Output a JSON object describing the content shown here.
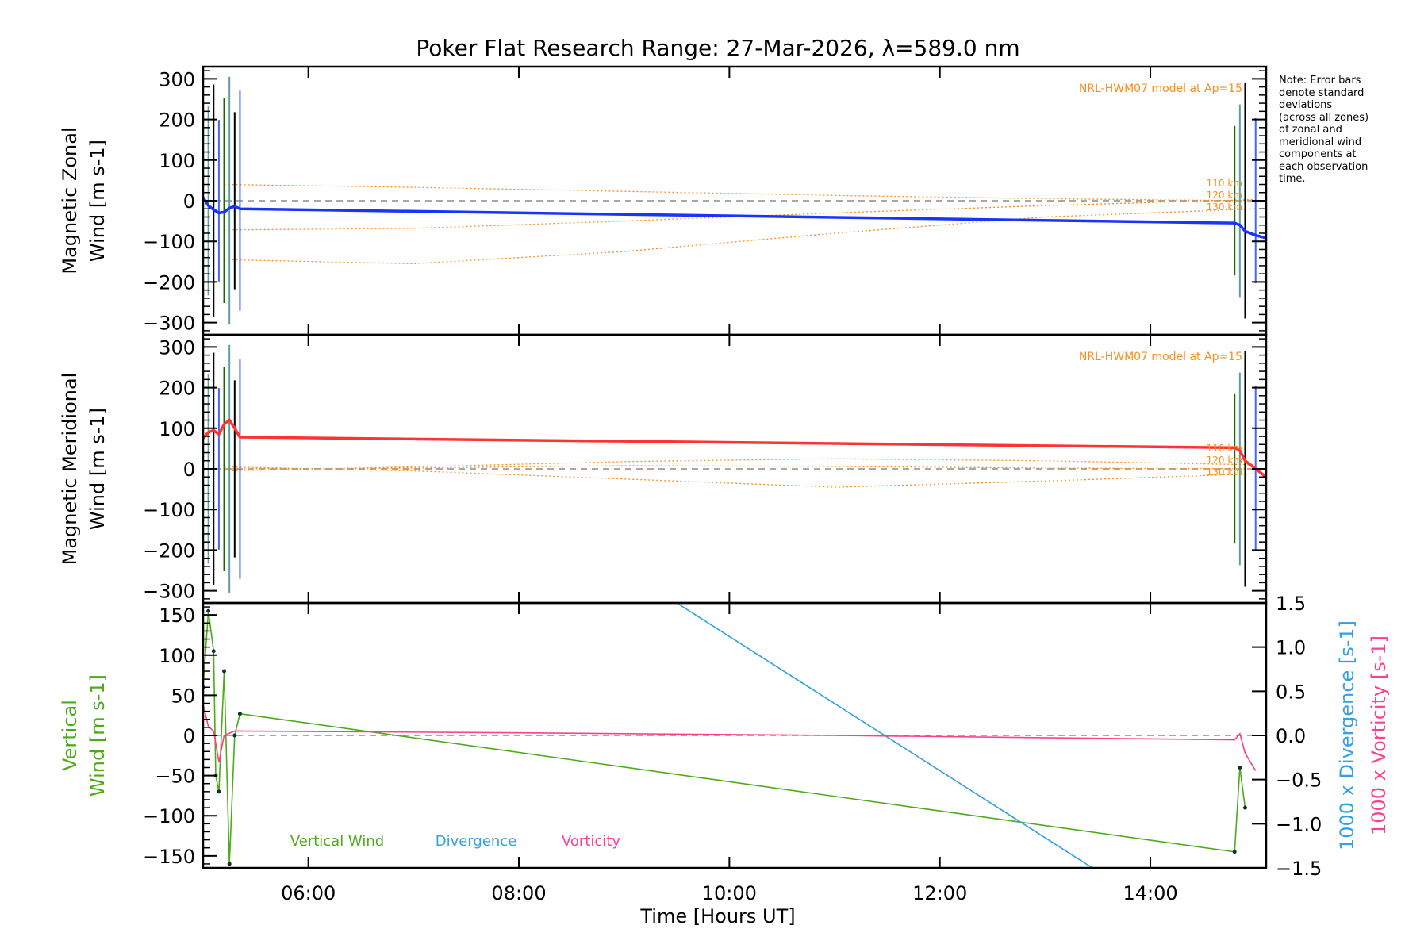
{
  "chart_data": {
    "type": "line",
    "title": "Poker Flat Research Range: 27-Mar-2026, λ=589.0 nm",
    "xlabel": "Time [Hours UT]",
    "xlim": [
      5.0,
      15.1
    ],
    "xticks": [
      6,
      8,
      10,
      12,
      14
    ],
    "xtick_labels": [
      "06:00",
      "08:00",
      "10:00",
      "12:00",
      "14:00"
    ],
    "note": [
      "Note: Error bars",
      "denote standard",
      "deviations",
      "(across all zones)",
      "of zonal and",
      "meridional wind",
      "components at",
      "each observation",
      "time."
    ],
    "panels": [
      {
        "id": "zonal",
        "ylabel_lines": [
          "Magnetic Zonal",
          "Wind [m s-1]"
        ],
        "ylim": [
          -330,
          330
        ],
        "yticks": [
          -300,
          -200,
          -100,
          0,
          100,
          200,
          300
        ],
        "model_label": "NRL-HWM07 model at Ap=15",
        "model_altitudes": [
          "110 km",
          "120 km",
          "130 km"
        ],
        "model_color": "#ff8c1a",
        "series": [
          {
            "name": "Magnetic Zonal Wind",
            "color": "#1a33ff",
            "x": [
              5.0,
              5.05,
              5.1,
              5.15,
              5.2,
              5.25,
              5.3,
              5.35,
              14.8,
              14.85,
              14.9,
              15.0,
              15.1
            ],
            "y": [
              8,
              -12,
              -22,
              -30,
              -28,
              -18,
              -14,
              -20,
              -55,
              -60,
              -75,
              -85,
              -92
            ]
          }
        ],
        "model_series": [
          {
            "x": [
              5.2,
              7.0,
              9.0,
              11.0,
              13.0,
              15.0
            ],
            "y": [
              40,
              33,
              23,
              13,
              5,
              0
            ]
          },
          {
            "x": [
              5.2,
              7.0,
              9.0,
              11.0,
              13.0,
              15.0
            ],
            "y": [
              -72,
              -68,
              -50,
              -30,
              -12,
              3
            ]
          },
          {
            "x": [
              5.2,
              7.0,
              9.0,
              11.0,
              13.0,
              15.0
            ],
            "y": [
              -145,
              -155,
              -125,
              -80,
              -40,
              -20
            ]
          }
        ]
      },
      {
        "id": "meridional",
        "ylabel_lines": [
          "Magnetic Meridional",
          "Wind [m s-1]"
        ],
        "ylim": [
          -330,
          330
        ],
        "yticks": [
          -300,
          -200,
          -100,
          0,
          100,
          200,
          300
        ],
        "model_label": "NRL-HWM07 model at Ap=15",
        "model_altitudes": [
          "110 km",
          "120 km",
          "130 km"
        ],
        "model_color": "#ff8c1a",
        "series": [
          {
            "name": "Magnetic Meridional Wind",
            "color": "#ff3333",
            "x": [
              5.0,
              5.05,
              5.1,
              5.15,
              5.2,
              5.25,
              5.3,
              5.35,
              14.8,
              14.85,
              14.9,
              15.0,
              15.1
            ],
            "y": [
              75,
              90,
              95,
              85,
              110,
              120,
              100,
              78,
              52,
              45,
              20,
              0,
              -20
            ]
          }
        ],
        "model_series": [
          {
            "x": [
              5.2,
              7.0,
              9.0,
              11.0,
              13.0,
              15.0
            ],
            "y": [
              -5,
              5,
              18,
              25,
              20,
              10
            ]
          },
          {
            "x": [
              5.2,
              7.0,
              9.0,
              11.0,
              13.0,
              15.0
            ],
            "y": [
              0,
              2,
              8,
              6,
              2,
              0
            ]
          },
          {
            "x": [
              5.2,
              7.0,
              9.0,
              11.0,
              13.0,
              15.0
            ],
            "y": [
              5,
              -5,
              -25,
              -45,
              -30,
              -12
            ]
          }
        ]
      },
      {
        "id": "vertical",
        "ylabel_lines": [
          "Vertical",
          "Wind [m s-1]"
        ],
        "ylim": [
          -165,
          165
        ],
        "yticks": [
          -150,
          -100,
          -50,
          0,
          50,
          100,
          150
        ],
        "y2label_div": "1000 x Divergence [s-1]",
        "y2label_vort": "1000 x Vorticity [s-1]",
        "y2lim": [
          -1.5,
          1.5
        ],
        "y2ticks": [
          -1.5,
          -1.0,
          -0.5,
          0.0,
          0.5,
          1.0,
          1.5
        ],
        "y2tick_labels": [
          "-1.5",
          "-1.0",
          "-0.5",
          "0.0",
          "0.5",
          "1.0",
          "1.5"
        ],
        "legend": [
          {
            "label": "Vertical Wind",
            "color": "#4daa1a"
          },
          {
            "label": "Divergence",
            "color": "#33a0e0"
          },
          {
            "label": "Vorticity",
            "color": "#ff3f8c"
          }
        ],
        "series": [
          {
            "name": "Vertical Wind",
            "color": "#4daa1a",
            "x": [
              5.0,
              5.05,
              5.1,
              5.12,
              5.15,
              5.2,
              5.25,
              5.3,
              5.35,
              14.8,
              14.85,
              14.9
            ],
            "y": [
              60,
              155,
              105,
              -50,
              -70,
              80,
              -160,
              0,
              27,
              -145,
              -40,
              -90
            ]
          },
          {
            "name": "Divergence",
            "color": "#33a0e0",
            "axis": "y2",
            "x": [
              9.5,
              13.45
            ],
            "y": [
              1.5,
              -1.5
            ]
          },
          {
            "name": "Vorticity",
            "color": "#ff3f8c",
            "axis": "y2",
            "x": [
              5.0,
              5.05,
              5.1,
              5.15,
              5.2,
              5.3,
              8.0,
              11.0,
              14.8,
              14.85,
              14.9,
              15.0
            ],
            "y": [
              0.35,
              0.1,
              0.05,
              -0.3,
              0.0,
              0.05,
              0.03,
              0.0,
              -0.05,
              0.02,
              -0.2,
              -0.4
            ]
          }
        ]
      }
    ]
  }
}
